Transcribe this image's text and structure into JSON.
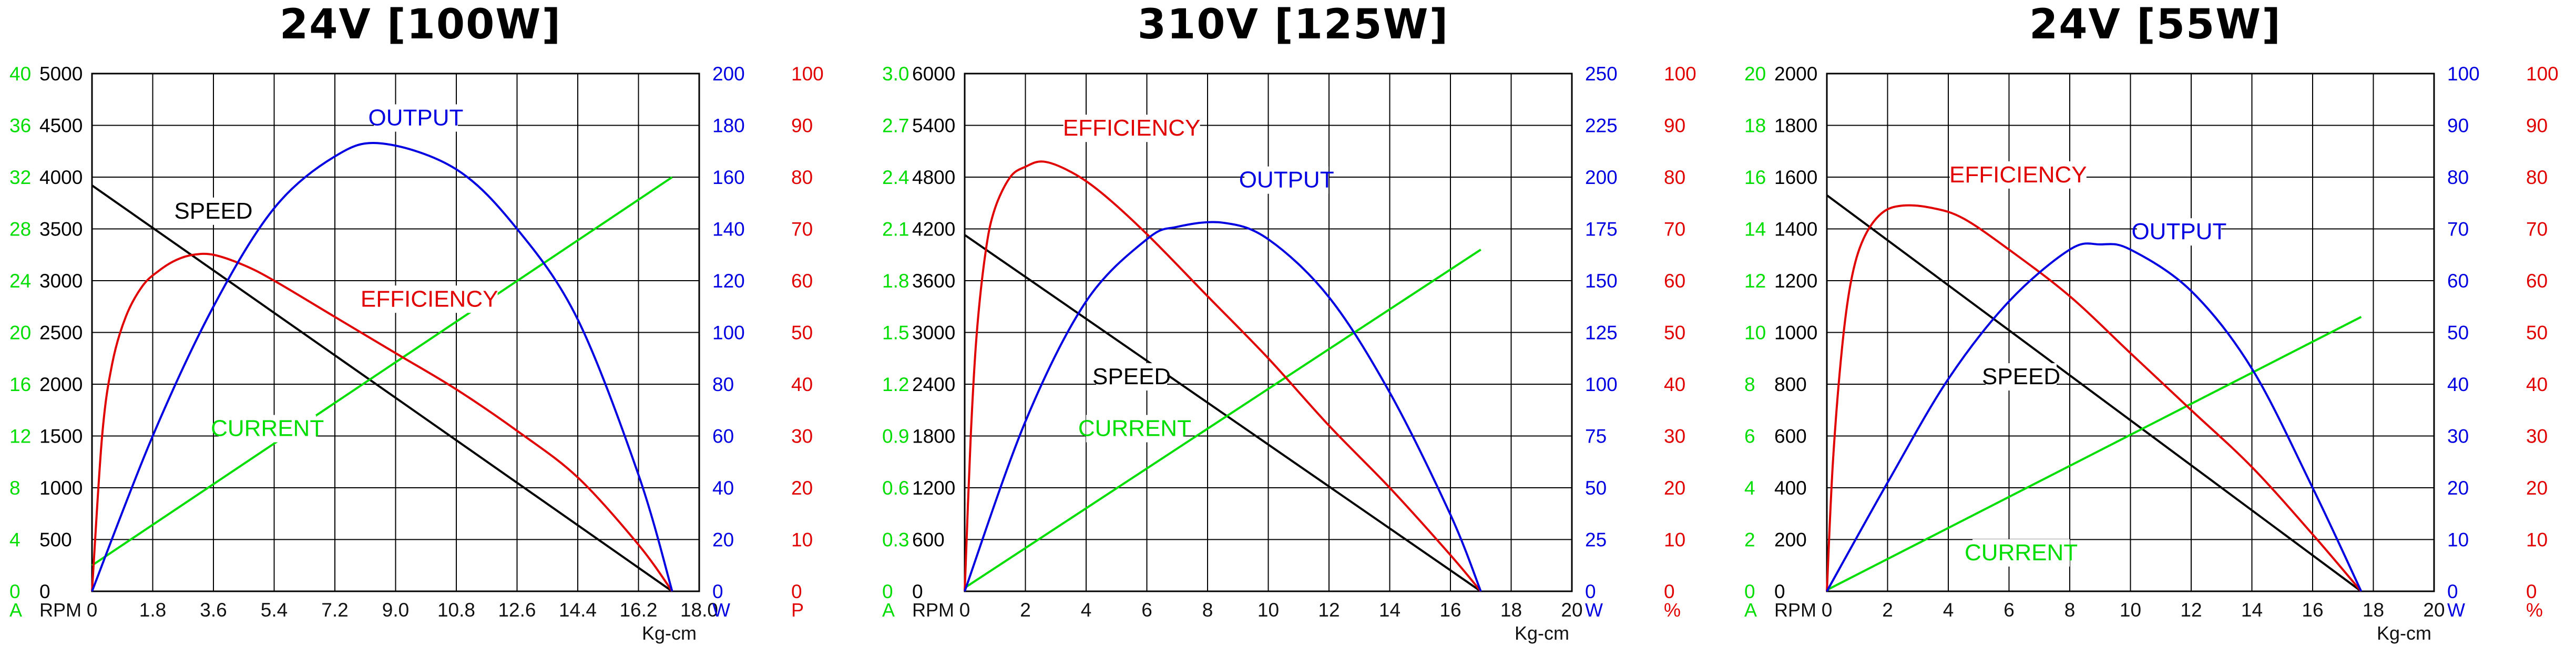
{
  "colors": {
    "speed": "#000000",
    "efficiency": "#e00000",
    "output": "#0000e0",
    "current": "#00dd00",
    "grid": "#000000"
  },
  "chart_data": [
    {
      "type": "line",
      "title": "24V [100W]",
      "curve_labels": {
        "speed": "SPEED",
        "efficiency": "EFFICIENCY",
        "output": "OUTPUT",
        "current": "CURRENT"
      },
      "unit_labels": {
        "current": "A",
        "speed": "RPM",
        "output": "W",
        "efficiency": "P",
        "torque": "Kg-cm"
      },
      "axes": {
        "x": {
          "ticks": [
            "0",
            "1.8",
            "3.6",
            "5.4",
            "7.2",
            "9.0",
            "10.8",
            "12.6",
            "14.4",
            "16.2",
            "18.0"
          ],
          "min": 0,
          "max": 18
        },
        "current": {
          "ticks": [
            "0",
            "4",
            "8",
            "12",
            "16",
            "20",
            "24",
            "28",
            "32",
            "36",
            "40"
          ],
          "min": 0,
          "max": 40
        },
        "speed": {
          "ticks": [
            "0",
            "500",
            "1000",
            "1500",
            "2000",
            "2500",
            "3000",
            "3500",
            "4000",
            "4500",
            "5000"
          ],
          "min": 0,
          "max": 5000
        },
        "output": {
          "ticks": [
            "0",
            "20",
            "40",
            "60",
            "80",
            "100",
            "120",
            "140",
            "160",
            "180",
            "200"
          ],
          "min": 0,
          "max": 200
        },
        "efficiency": {
          "ticks": [
            "0",
            "10",
            "20",
            "30",
            "40",
            "50",
            "60",
            "70",
            "80",
            "90",
            "100"
          ],
          "min": 0,
          "max": 100
        }
      },
      "series": [
        {
          "name": "SPEED",
          "axis": "speed",
          "x": [
            0,
            17.2
          ],
          "values": [
            3920,
            0
          ]
        },
        {
          "name": "CURRENT",
          "axis": "current",
          "x": [
            0,
            17.2
          ],
          "values": [
            2,
            32
          ]
        },
        {
          "name": "EFFICIENCY",
          "axis": "efficiency",
          "x": [
            0,
            0.3,
            0.6,
            1.0,
            1.5,
            2.0,
            2.5,
            3.0,
            3.6,
            4.5,
            5.4,
            7.2,
            9.0,
            10.8,
            12.6,
            14.4,
            16.2,
            17.2
          ],
          "values": [
            0,
            30,
            44,
            53,
            59,
            62,
            64,
            65,
            65,
            63,
            60,
            53,
            46,
            39,
            31,
            22,
            9,
            0
          ]
        },
        {
          "name": "OUTPUT",
          "axis": "output",
          "x": [
            0,
            1.8,
            3.6,
            5.4,
            7.2,
            8.6,
            10.8,
            12.6,
            14.4,
            16.2,
            17.2
          ],
          "values": [
            0,
            60,
            110,
            148,
            168,
            173,
            163,
            140,
            105,
            45,
            0
          ]
        }
      ]
    },
    {
      "type": "line",
      "title": "310V [125W]",
      "curve_labels": {
        "speed": "SPEED",
        "efficiency": "EFFICIENCY",
        "output": "OUTPUT",
        "current": "CURRENT"
      },
      "unit_labels": {
        "current": "A",
        "speed": "RPM",
        "output": "W",
        "efficiency": "%",
        "torque": "Kg-cm"
      },
      "axes": {
        "x": {
          "ticks": [
            "0",
            "2",
            "4",
            "6",
            "8",
            "10",
            "12",
            "14",
            "16",
            "18",
            "20"
          ],
          "min": 0,
          "max": 20
        },
        "current": {
          "ticks": [
            "0",
            "0.3",
            "0.6",
            "0.9",
            "1.2",
            "1.5",
            "1.8",
            "2.1",
            "2.4",
            "2.7",
            "3.0"
          ],
          "min": 0,
          "max": 3
        },
        "speed": {
          "ticks": [
            "0",
            "600",
            "1200",
            "1800",
            "2400",
            "3000",
            "3600",
            "4200",
            "4800",
            "5400",
            "6000"
          ],
          "min": 0,
          "max": 6000
        },
        "output": {
          "ticks": [
            "0",
            "25",
            "50",
            "75",
            "100",
            "125",
            "150",
            "175",
            "200",
            "225",
            "250"
          ],
          "min": 0,
          "max": 250
        },
        "efficiency": {
          "ticks": [
            "0",
            "10",
            "20",
            "30",
            "40",
            "50",
            "60",
            "70",
            "80",
            "90",
            "100"
          ],
          "min": 0,
          "max": 100
        }
      },
      "series": [
        {
          "name": "SPEED",
          "axis": "speed",
          "x": [
            0,
            17
          ],
          "values": [
            4130,
            0
          ]
        },
        {
          "name": "CURRENT",
          "axis": "current",
          "x": [
            0,
            17
          ],
          "values": [
            0.02,
            1.98
          ]
        },
        {
          "name": "EFFICIENCY",
          "axis": "efficiency",
          "x": [
            0,
            0.2,
            0.4,
            0.7,
            1.0,
            1.5,
            2.0,
            2.6,
            3.5,
            4.5,
            6,
            8,
            10,
            12,
            14,
            16,
            17
          ],
          "values": [
            0,
            30,
            50,
            66,
            74,
            80,
            82,
            83,
            81,
            77,
            69,
            57,
            45,
            32,
            20,
            7,
            0
          ]
        },
        {
          "name": "OUTPUT",
          "axis": "output",
          "x": [
            0,
            2,
            4,
            6,
            7,
            8.5,
            10,
            12,
            14,
            16,
            17
          ],
          "values": [
            0,
            82,
            140,
            170,
            176,
            178,
            170,
            142,
            96,
            37,
            0
          ]
        }
      ]
    },
    {
      "type": "line",
      "title": "24V [55W]",
      "curve_labels": {
        "speed": "SPEED",
        "efficiency": "EFFICIENCY",
        "output": "OUTPUT",
        "current": "CURRENT"
      },
      "unit_labels": {
        "current": "A",
        "speed": "RPM",
        "output": "W",
        "efficiency": "%",
        "torque": "Kg-cm"
      },
      "axes": {
        "x": {
          "ticks": [
            "0",
            "2",
            "4",
            "6",
            "8",
            "10",
            "12",
            "14",
            "16",
            "18",
            "20"
          ],
          "min": 0,
          "max": 20
        },
        "current": {
          "ticks": [
            "0",
            "2",
            "4",
            "6",
            "8",
            "10",
            "12",
            "14",
            "16",
            "18",
            "20"
          ],
          "min": 0,
          "max": 20
        },
        "speed": {
          "ticks": [
            "0",
            "200",
            "400",
            "600",
            "800",
            "1000",
            "1200",
            "1400",
            "1600",
            "1800",
            "2000"
          ],
          "min": 0,
          "max": 2000
        },
        "output": {
          "ticks": [
            "0",
            "10",
            "20",
            "30",
            "40",
            "50",
            "60",
            "70",
            "80",
            "90",
            "100"
          ],
          "min": 0,
          "max": 100
        },
        "efficiency": {
          "ticks": [
            "0",
            "10",
            "20",
            "30",
            "40",
            "50",
            "60",
            "70",
            "80",
            "90",
            "100"
          ],
          "min": 0,
          "max": 100
        }
      },
      "series": [
        {
          "name": "SPEED",
          "axis": "speed",
          "x": [
            0,
            17.6
          ],
          "values": [
            1530,
            0
          ]
        },
        {
          "name": "CURRENT",
          "axis": "current",
          "x": [
            0,
            17.6
          ],
          "values": [
            0.05,
            10.6
          ]
        },
        {
          "name": "EFFICIENCY",
          "axis": "efficiency",
          "x": [
            0,
            0.2,
            0.5,
            0.8,
            1.2,
            1.8,
            2.5,
            3.5,
            4.5,
            6,
            8,
            10,
            12,
            14,
            16,
            17.6
          ],
          "values": [
            0,
            25,
            47,
            60,
            68,
            73,
            74.5,
            74,
            72,
            66,
            57,
            46,
            35,
            24,
            11,
            0
          ]
        },
        {
          "name": "OUTPUT",
          "axis": "output",
          "x": [
            0,
            2,
            4,
            6,
            8,
            9,
            10,
            12,
            14,
            16,
            17.6
          ],
          "values": [
            0,
            21,
            41,
            56,
            66,
            67,
            66,
            58,
            43,
            20,
            0
          ]
        }
      ]
    }
  ]
}
